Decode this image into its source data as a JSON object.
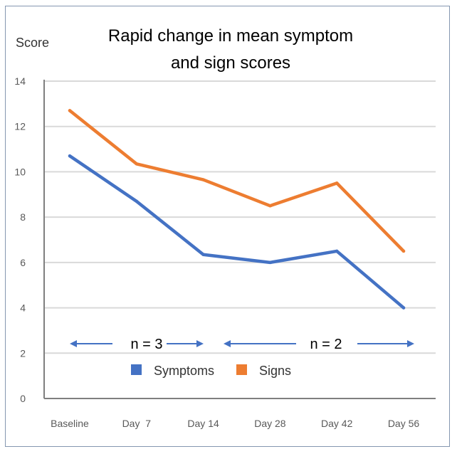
{
  "chart_data": {
    "type": "line",
    "title_lines": [
      "Rapid change in mean symptom",
      "and sign scores"
    ],
    "ylabel": "Score",
    "xlabel": "",
    "categories": [
      "Baseline",
      "Day  7",
      "Day 14",
      "Day 28",
      "Day 42",
      "Day 56"
    ],
    "ylim": [
      0,
      14
    ],
    "yticks": [
      0,
      2,
      4,
      6,
      8,
      10,
      12,
      14
    ],
    "grid": true,
    "series": [
      {
        "name": "Symptoms",
        "color": "#4472c4",
        "values": [
          10.7,
          8.7,
          6.35,
          6.0,
          6.5,
          4.0
        ]
      },
      {
        "name": "Signs",
        "color": "#ed7d31",
        "values": [
          12.7,
          10.35,
          9.65,
          8.5,
          9.5,
          6.5
        ]
      }
    ],
    "legend_position": "bottom",
    "annotations": [
      {
        "text": "n = 3",
        "range": [
          "Baseline",
          "Day 14"
        ]
      },
      {
        "text": "n = 2",
        "range": [
          "Day 28",
          "Day 56"
        ]
      }
    ],
    "arrow_color": "#4472c4",
    "grid_color": "#d9d9d9",
    "axis_color": "#7f7f7f"
  }
}
